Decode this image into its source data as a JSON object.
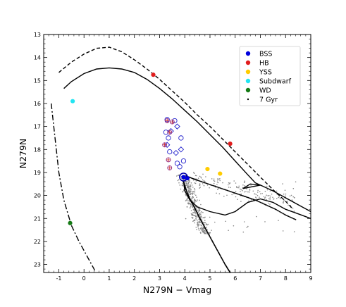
{
  "chart_data": {
    "type": "scatter",
    "xlabel": "N279N − Vmag",
    "ylabel": "N279N",
    "xlim": [
      -1.6,
      9.0
    ],
    "ylim": [
      23.35,
      13.0
    ],
    "y_inverted": true,
    "x_ticks": [
      -1,
      0,
      1,
      2,
      3,
      4,
      5,
      6,
      7,
      8,
      9
    ],
    "y_ticks": [
      13,
      14,
      15,
      16,
      17,
      18,
      19,
      20,
      21,
      22,
      23
    ],
    "legend": {
      "position": "top-right",
      "entries": [
        {
          "label": "BSS",
          "color": "#0000dd",
          "marker": "circle"
        },
        {
          "label": "HB",
          "color": "#e11d1d",
          "marker": "circle"
        },
        {
          "label": "YSS",
          "color": "#ffcc00",
          "marker": "circle"
        },
        {
          "label": "Subdwarf",
          "color": "#22e5f2",
          "marker": "circle"
        },
        {
          "label": "WD",
          "color": "#157a15",
          "marker": "circle"
        },
        {
          "label": "7 Gyr",
          "color": "#000000",
          "marker": "dot"
        }
      ]
    },
    "series": [
      {
        "name": "BSS",
        "color": "#0000dd",
        "points": [
          [
            3.95,
            19.2
          ],
          [
            4.1,
            19.25
          ]
        ]
      },
      {
        "name": "HB",
        "color": "#e11d1d",
        "points": [
          [
            2.75,
            14.75
          ],
          [
            5.8,
            17.75
          ]
        ]
      },
      {
        "name": "YSS",
        "color": "#ffcc00",
        "points": [
          [
            4.9,
            18.85
          ],
          [
            5.4,
            19.05
          ]
        ]
      },
      {
        "name": "Subdwarf",
        "color": "#22e5f2",
        "points": [
          [
            -0.45,
            15.9
          ]
        ]
      },
      {
        "name": "WD",
        "color": "#157a15",
        "points": [
          [
            -0.55,
            21.2
          ]
        ]
      },
      {
        "name": "7 Gyr",
        "color": "#000000",
        "marker": "dot",
        "points": [
          [
            3.95,
            19.4
          ],
          [
            4.05,
            19.75
          ],
          [
            4.2,
            20.15
          ],
          [
            4.4,
            20.55
          ],
          [
            4.6,
            21.0
          ],
          [
            4.85,
            21.5
          ],
          [
            5.1,
            22.0
          ],
          [
            5.35,
            22.5
          ],
          [
            5.6,
            23.0
          ],
          [
            5.8,
            23.35
          ],
          [
            4.05,
            19.15
          ],
          [
            4.4,
            19.3
          ],
          [
            4.8,
            19.45
          ],
          [
            5.2,
            19.6
          ],
          [
            5.6,
            19.75
          ],
          [
            6.0,
            19.9
          ],
          [
            6.4,
            20.05
          ],
          [
            6.8,
            20.2
          ],
          [
            7.2,
            20.4
          ],
          [
            7.6,
            20.6
          ],
          [
            8.0,
            20.85
          ],
          [
            8.4,
            21.05
          ]
        ]
      }
    ],
    "open_circles": [
      [
        3.3,
        16.7
      ],
      [
        3.25,
        17.25
      ],
      [
        3.35,
        17.5
      ],
      [
        3.4,
        18.1
      ],
      [
        3.85,
        17.5
      ],
      [
        3.7,
        18.6
      ],
      [
        3.8,
        18.75
      ],
      [
        3.95,
        18.5
      ],
      [
        3.6,
        16.75
      ]
    ],
    "open_diamonds": [
      [
        3.7,
        17.0
      ],
      [
        3.45,
        17.2
      ],
      [
        3.65,
        18.15
      ],
      [
        3.85,
        18.0
      ],
      [
        3.3,
        17.8
      ]
    ],
    "crossed_circles": [
      [
        3.3,
        16.75
      ],
      [
        3.5,
        16.8
      ],
      [
        3.4,
        17.25
      ],
      [
        3.2,
        17.8
      ],
      [
        3.35,
        18.45
      ],
      [
        3.4,
        18.8
      ]
    ],
    "field_stars": {
      "color": "#888888",
      "region": "main-sequence turnoff and subgiant branch"
    },
    "isochrones": [
      {
        "style": "solid",
        "points": [
          [
            -0.8,
            15.35
          ],
          [
            -0.5,
            15.05
          ],
          [
            0.0,
            14.7
          ],
          [
            0.5,
            14.5
          ],
          [
            1.0,
            14.45
          ],
          [
            1.5,
            14.5
          ],
          [
            2.0,
            14.65
          ],
          [
            2.5,
            14.95
          ],
          [
            3.0,
            15.35
          ],
          [
            3.5,
            15.8
          ],
          [
            4.0,
            16.3
          ],
          [
            4.5,
            16.8
          ],
          [
            5.0,
            17.35
          ],
          [
            5.5,
            17.9
          ],
          [
            6.0,
            18.5
          ],
          [
            6.5,
            19.1
          ],
          [
            6.8,
            19.45
          ],
          [
            7.0,
            19.55
          ],
          [
            6.6,
            19.5
          ],
          [
            6.3,
            19.7
          ],
          [
            7.0,
            19.55
          ],
          [
            7.5,
            19.8
          ],
          [
            8.0,
            20.1
          ],
          [
            8.5,
            20.4
          ],
          [
            9.0,
            20.7
          ]
        ]
      },
      {
        "style": "dashed",
        "points": [
          [
            -1.0,
            14.65
          ],
          [
            -0.5,
            14.2
          ],
          [
            0.0,
            13.85
          ],
          [
            0.5,
            13.6
          ],
          [
            1.0,
            13.55
          ],
          [
            1.5,
            13.75
          ],
          [
            2.0,
            14.1
          ],
          [
            2.5,
            14.5
          ],
          [
            3.0,
            14.95
          ],
          [
            3.5,
            15.45
          ],
          [
            4.0,
            15.95
          ],
          [
            4.5,
            16.5
          ],
          [
            5.0,
            17.0
          ],
          [
            5.5,
            17.55
          ],
          [
            6.0,
            18.1
          ],
          [
            6.5,
            18.65
          ],
          [
            7.0,
            19.2
          ],
          [
            7.5,
            19.75
          ],
          [
            8.0,
            20.25
          ],
          [
            8.3,
            20.6
          ]
        ]
      },
      {
        "style": "dashdot",
        "points": [
          [
            -1.3,
            16.0
          ],
          [
            -1.15,
            17.5
          ],
          [
            -1.0,
            19.0
          ],
          [
            -0.8,
            20.2
          ],
          [
            -0.5,
            21.3
          ],
          [
            -0.2,
            22.0
          ],
          [
            0.1,
            22.6
          ],
          [
            0.4,
            23.2
          ],
          [
            0.45,
            23.35
          ]
        ]
      },
      {
        "style": "solid",
        "points": [
          [
            3.95,
            19.35
          ],
          [
            4.0,
            19.8
          ],
          [
            4.2,
            20.2
          ],
          [
            4.5,
            20.5
          ],
          [
            5.0,
            20.7
          ],
          [
            5.6,
            20.85
          ],
          [
            6.0,
            20.7
          ],
          [
            6.5,
            20.3
          ],
          [
            7.0,
            20.15
          ],
          [
            7.5,
            20.3
          ],
          [
            8.0,
            20.6
          ],
          [
            8.5,
            20.8
          ],
          [
            9.0,
            21.0
          ]
        ]
      }
    ]
  }
}
